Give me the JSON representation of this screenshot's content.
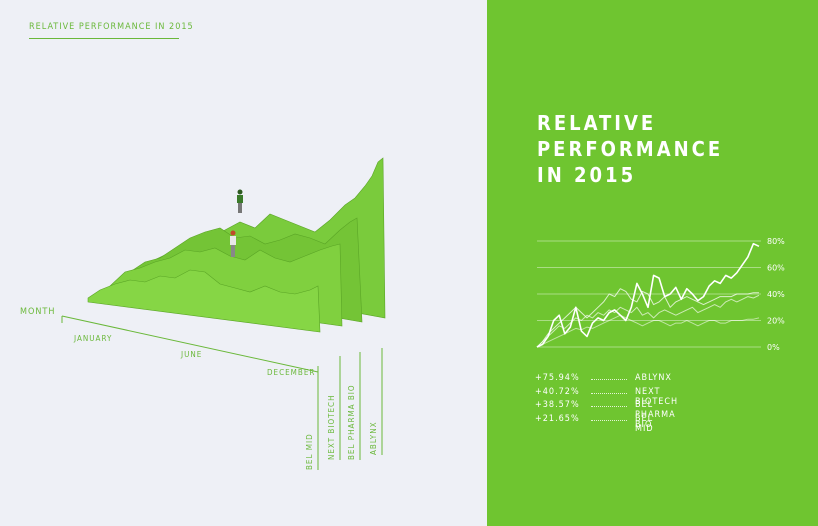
{
  "colors": {
    "accent_green": "#6fc530",
    "left_background": "#eef0f6",
    "model_green": "#7acb3c",
    "model_dark": "#5aa526",
    "figure_text": "#6ab83a",
    "white": "#ffffff"
  },
  "left_panel": {
    "small_title": "RELATIVE PERFORMANCE IN 2015",
    "axis_label": "MONTH",
    "month_labels": [
      "JANUARY",
      "JUNE",
      "DECEMBER"
    ],
    "series_labels": [
      "BEL MID",
      "NEXT BIOTECH",
      "BEL PHARMA BIO",
      "ABLYNX"
    ]
  },
  "right_panel": {
    "title_lines": [
      "RELATIVE",
      "PERFORMANCE",
      "IN 2015"
    ]
  },
  "chart_data": {
    "type": "line",
    "title": "RELATIVE PERFORMANCE IN 2015",
    "ylim": [
      0,
      80
    ],
    "y_ticks": [
      "0%",
      "20%",
      "40%",
      "60%",
      "80%"
    ],
    "grid": true,
    "x_range": [
      "January",
      "December"
    ],
    "series": [
      {
        "name": "ABLYNX",
        "final_change": "+75.94%",
        "values": [
          0,
          2,
          8,
          20,
          24,
          10,
          15,
          30,
          12,
          8,
          18,
          22,
          20,
          26,
          28,
          24,
          20,
          30,
          48,
          40,
          30,
          54,
          52,
          38,
          40,
          45,
          36,
          44,
          40,
          35,
          38,
          46,
          50,
          48,
          54,
          52,
          56,
          62,
          68,
          78,
          76
        ]
      },
      {
        "name": "NEXT BIOTECH",
        "final_change": "+40.72%",
        "values": [
          0,
          4,
          10,
          14,
          18,
          22,
          26,
          30,
          26,
          22,
          26,
          30,
          34,
          40,
          38,
          44,
          42,
          36,
          34,
          42,
          40,
          32,
          34,
          38,
          30,
          34,
          36,
          38,
          36,
          34,
          32,
          34,
          36,
          38,
          38,
          38,
          40,
          40,
          40,
          41,
          41
        ]
      },
      {
        "name": "BEL PHARMA BIO",
        "final_change": "+38.57%",
        "values": [
          0,
          4,
          8,
          12,
          16,
          14,
          18,
          22,
          20,
          24,
          22,
          26,
          24,
          28,
          26,
          30,
          28,
          26,
          30,
          24,
          26,
          22,
          26,
          28,
          26,
          24,
          26,
          28,
          30,
          26,
          28,
          30,
          32,
          30,
          34,
          36,
          34,
          36,
          38,
          37,
          39
        ]
      },
      {
        "name": "BEL MID",
        "final_change": "+21.65%",
        "values": [
          0,
          2,
          4,
          6,
          8,
          10,
          12,
          14,
          13,
          15,
          14,
          16,
          18,
          20,
          22,
          24,
          22,
          20,
          18,
          16,
          18,
          20,
          20,
          18,
          16,
          18,
          18,
          20,
          18,
          16,
          18,
          20,
          20,
          18,
          18,
          20,
          20,
          20,
          21,
          21,
          22
        ]
      }
    ]
  },
  "legend": [
    {
      "pct": "+75.94%",
      "name": "ABLYNX"
    },
    {
      "pct": "+40.72%",
      "name": "NEXT BIOTECH"
    },
    {
      "pct": "+38.57%",
      "name": "BEL PHARMA BIO"
    },
    {
      "pct": "+21.65%",
      "name": "BEL MID"
    }
  ]
}
